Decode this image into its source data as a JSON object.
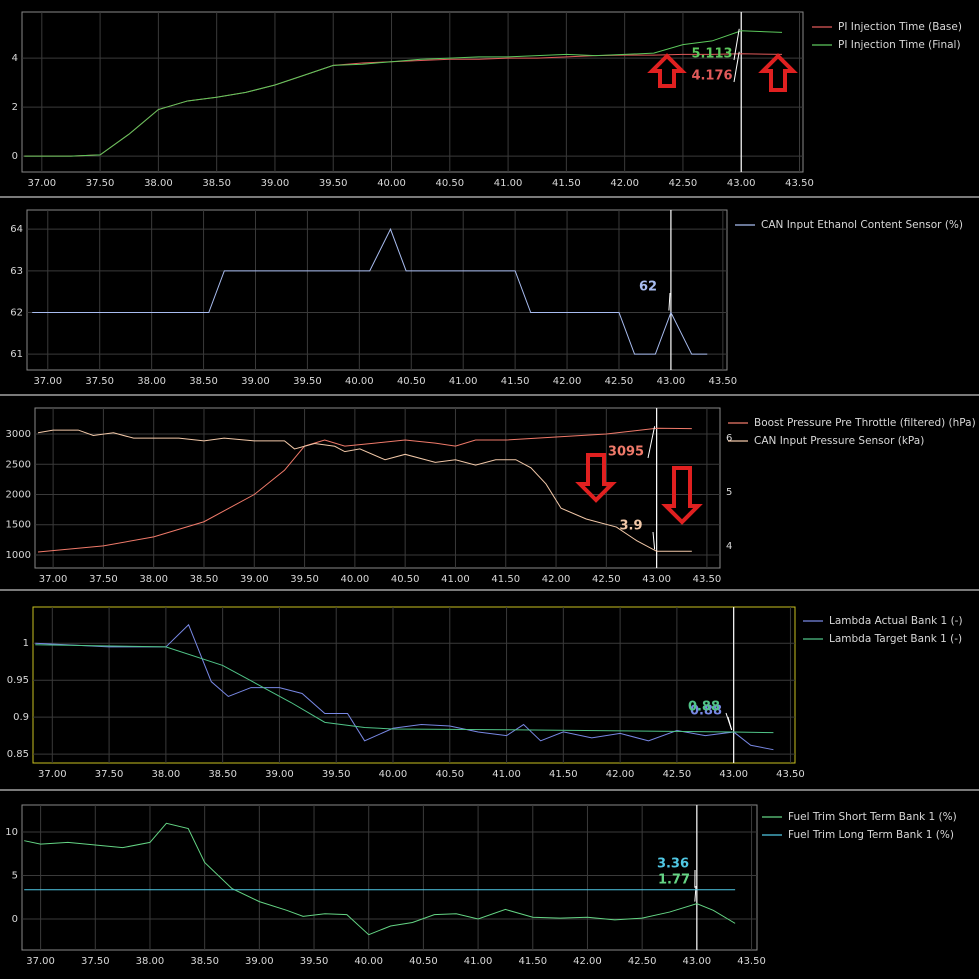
{
  "chart_data": [
    {
      "type": "line",
      "frame_color": "#888888",
      "xlim": [
        36.83,
        43.53
      ],
      "ylim": [
        -0.65,
        5.88
      ],
      "yticks": [
        0,
        2,
        4
      ],
      "grid": true,
      "cursor_x": 43.0,
      "xticks": [
        {
          "value": 37,
          "label": "37.00"
        },
        {
          "value": 37.5,
          "label": "37.50"
        },
        {
          "value": 38,
          "label": "38.00"
        },
        {
          "value": 38.5,
          "label": "38.50"
        },
        {
          "value": 39,
          "label": "39.00"
        },
        {
          "value": 39.5,
          "label": "39.50"
        },
        {
          "value": 40,
          "label": "40.00"
        },
        {
          "value": 40.5,
          "label": "40.50"
        },
        {
          "value": 41,
          "label": "41.00"
        },
        {
          "value": 41.5,
          "label": "41.50"
        },
        {
          "value": 42,
          "label": "42.00"
        },
        {
          "value": 42.5,
          "label": "42.50"
        },
        {
          "value": 43,
          "label": "43.00"
        },
        {
          "value": 43.5,
          "label": "43.50"
        }
      ],
      "series": [
        {
          "name": "PI Injection Time (Base)",
          "color": "#e05a5a",
          "cursor_value": 4.176,
          "x": [
            36.85,
            37.0,
            37.25,
            37.5,
            37.75,
            38.0,
            38.25,
            38.5,
            38.75,
            39.0,
            39.25,
            39.5,
            39.75,
            40.0,
            40.25,
            40.5,
            40.75,
            41.0,
            41.25,
            41.5,
            41.75,
            42.0,
            42.25,
            42.5,
            42.75,
            43.0,
            43.35
          ],
          "values": [
            0,
            0,
            0,
            0.05,
            0.9,
            1.9,
            2.25,
            2.4,
            2.6,
            2.9,
            3.3,
            3.7,
            3.8,
            3.85,
            3.9,
            3.95,
            3.95,
            4.0,
            4.0,
            4.05,
            4.1,
            4.12,
            4.12,
            4.15,
            4.15,
            4.176,
            4.15
          ]
        },
        {
          "name": "PI Injection Time (Final)",
          "color": "#5cc85c",
          "cursor_value": 5.113,
          "x": [
            36.85,
            37.0,
            37.25,
            37.5,
            37.75,
            38.0,
            38.25,
            38.5,
            38.75,
            39.0,
            39.25,
            39.5,
            39.75,
            40.0,
            40.25,
            40.5,
            40.75,
            41.0,
            41.25,
            41.5,
            41.75,
            42.0,
            42.25,
            42.5,
            42.75,
            43.0,
            43.35
          ],
          "values": [
            0,
            0,
            0,
            0.05,
            0.9,
            1.9,
            2.25,
            2.4,
            2.6,
            2.9,
            3.3,
            3.7,
            3.75,
            3.85,
            3.95,
            4.0,
            4.05,
            4.05,
            4.1,
            4.15,
            4.1,
            4.15,
            4.2,
            4.55,
            4.7,
            5.113,
            5.05
          ]
        }
      ]
    },
    {
      "type": "line",
      "frame_color": "#888888",
      "xlim": [
        36.8,
        43.54
      ],
      "ylim": [
        60.62,
        64.46
      ],
      "yticks": [
        61,
        62,
        63,
        64
      ],
      "grid": true,
      "cursor_x": 43.0,
      "xticks": [
        {
          "value": 37,
          "label": "37.00"
        },
        {
          "value": 37.5,
          "label": "37.50"
        },
        {
          "value": 38,
          "label": "38.00"
        },
        {
          "value": 38.5,
          "label": "38.50"
        },
        {
          "value": 39,
          "label": "39.00"
        },
        {
          "value": 39.5,
          "label": "39.50"
        },
        {
          "value": 40,
          "label": "40.00"
        },
        {
          "value": 40.5,
          "label": "40.50"
        },
        {
          "value": 41,
          "label": "41.00"
        },
        {
          "value": 41.5,
          "label": "41.50"
        },
        {
          "value": 42,
          "label": "42.00"
        },
        {
          "value": 42.5,
          "label": "42.50"
        },
        {
          "value": 43,
          "label": "43.00"
        },
        {
          "value": 43.5,
          "label": "43.50"
        }
      ],
      "series": [
        {
          "name": "CAN Input Ethanol Content Sensor (%)",
          "color": "#a8bcf0",
          "cursor_value": 62,
          "x": [
            36.85,
            38.55,
            38.7,
            40.1,
            40.3,
            40.45,
            41.5,
            41.65,
            42.5,
            42.65,
            42.85,
            43.0,
            43.2,
            43.35
          ],
          "values": [
            62,
            62,
            63,
            63,
            64,
            63,
            63,
            62,
            62,
            61,
            61,
            62,
            61,
            61
          ]
        }
      ]
    },
    {
      "type": "line",
      "frame_color": "#888888",
      "xlim": [
        36.82,
        43.63
      ],
      "ylim": [
        785,
        3430
      ],
      "yticks": [
        1000,
        1500,
        2000,
        2500,
        3000
      ],
      "y2lim": [
        3.59,
        6.56
      ],
      "y2ticks": [
        4,
        5,
        6
      ],
      "grid": true,
      "cursor_x": 43.0,
      "xticks": [
        {
          "value": 37,
          "label": "37.00"
        },
        {
          "value": 37.5,
          "label": "37.50"
        },
        {
          "value": 38,
          "label": "38.00"
        },
        {
          "value": 38.5,
          "label": "38.50"
        },
        {
          "value": 39,
          "label": "39.00"
        },
        {
          "value": 39.5,
          "label": "39.50"
        },
        {
          "value": 40,
          "label": "40.00"
        },
        {
          "value": 40.5,
          "label": "40.50"
        },
        {
          "value": 41,
          "label": "41.00"
        },
        {
          "value": 41.5,
          "label": "41.50"
        },
        {
          "value": 42,
          "label": "42.00"
        },
        {
          "value": 42.5,
          "label": "42.50"
        },
        {
          "value": 43,
          "label": "43.00"
        },
        {
          "value": 43.5,
          "label": "43.50"
        }
      ],
      "series": [
        {
          "name": "Boost Pressure Pre Throttle (filtered) (hPa)",
          "color": "#f07a6a",
          "cursor_value": 3095,
          "x": [
            36.85,
            37.5,
            38.0,
            38.5,
            39.0,
            39.3,
            39.5,
            39.7,
            39.9,
            40.2,
            40.5,
            40.8,
            41.0,
            41.2,
            41.5,
            42.0,
            42.5,
            43.0,
            43.35
          ],
          "values": [
            1050,
            1150,
            1300,
            1550,
            2000,
            2400,
            2800,
            2900,
            2800,
            2850,
            2900,
            2850,
            2800,
            2900,
            2900,
            2950,
            3000,
            3095,
            3090
          ]
        },
        {
          "name": "CAN Input Pressure Sensor (kPa)",
          "color": "#f2c8a8",
          "axis": "y2",
          "cursor_value": 3.9,
          "x": [
            36.85,
            37.0,
            37.25,
            37.4,
            37.6,
            37.8,
            38.0,
            38.25,
            38.5,
            38.7,
            39.0,
            39.3,
            39.4,
            39.6,
            39.8,
            39.9,
            40.05,
            40.3,
            40.5,
            40.8,
            41.0,
            41.2,
            41.4,
            41.6,
            41.75,
            41.9,
            42.05,
            42.3,
            42.6,
            42.8,
            43.0,
            43.35
          ],
          "values": [
            6.1,
            6.15,
            6.15,
            6.05,
            6.1,
            6.0,
            6.0,
            6.0,
            5.95,
            6.0,
            5.95,
            5.95,
            5.8,
            5.9,
            5.85,
            5.75,
            5.8,
            5.6,
            5.7,
            5.55,
            5.6,
            5.5,
            5.6,
            5.6,
            5.45,
            5.15,
            4.7,
            4.5,
            4.35,
            4.1,
            3.9,
            3.9
          ]
        }
      ]
    },
    {
      "type": "line",
      "frame_color": "#c8c020",
      "xlim": [
        36.83,
        43.54
      ],
      "ylim": [
        0.838,
        1.049
      ],
      "yticks": [
        0.85,
        0.9,
        0.95,
        1
      ],
      "grid": true,
      "cursor_x": 43.0,
      "xticks": [
        {
          "value": 37,
          "label": "37.00"
        },
        {
          "value": 37.5,
          "label": "37.50"
        },
        {
          "value": 38,
          "label": "38.00"
        },
        {
          "value": 38.5,
          "label": "38.50"
        },
        {
          "value": 39,
          "label": "39.00"
        },
        {
          "value": 39.5,
          "label": "39.50"
        },
        {
          "value": 40,
          "label": "40.00"
        },
        {
          "value": 40.5,
          "label": "40.50"
        },
        {
          "value": 41,
          "label": "41.00"
        },
        {
          "value": 41.5,
          "label": "41.50"
        },
        {
          "value": 42,
          "label": "42.00"
        },
        {
          "value": 42.5,
          "label": "42.50"
        },
        {
          "value": 43,
          "label": "43.00"
        },
        {
          "value": 43.5,
          "label": "43.50"
        }
      ],
      "series": [
        {
          "name": "Lambda Actual Bank 1 (-)",
          "color": "#7888e4",
          "cursor_value": 0.88,
          "x": [
            36.85,
            37.5,
            38.0,
            38.2,
            38.4,
            38.55,
            38.75,
            39.0,
            39.2,
            39.4,
            39.6,
            39.75,
            40.0,
            40.25,
            40.5,
            40.75,
            41.0,
            41.15,
            41.3,
            41.5,
            41.75,
            42.0,
            42.25,
            42.5,
            42.75,
            43.0,
            43.15,
            43.35
          ],
          "values": [
            1.0,
            0.995,
            0.995,
            1.025,
            0.948,
            0.928,
            0.94,
            0.94,
            0.932,
            0.905,
            0.905,
            0.868,
            0.885,
            0.89,
            0.888,
            0.88,
            0.875,
            0.89,
            0.868,
            0.88,
            0.872,
            0.878,
            0.868,
            0.882,
            0.875,
            0.88,
            0.862,
            0.856
          ]
        },
        {
          "name": "Lambda Target Bank 1 (-)",
          "color": "#50c488",
          "cursor_value": 0.88,
          "x": [
            36.85,
            38.0,
            38.5,
            38.8,
            39.1,
            39.4,
            39.75,
            40.0,
            41.0,
            43.0,
            43.35
          ],
          "values": [
            0.998,
            0.995,
            0.97,
            0.945,
            0.92,
            0.893,
            0.886,
            0.884,
            0.883,
            0.88,
            0.879
          ]
        }
      ]
    },
    {
      "type": "line",
      "frame_color": "#888888",
      "xlim": [
        36.83,
        43.55
      ],
      "ylim": [
        -3.56,
        13.1
      ],
      "yticks": [
        0,
        5,
        10
      ],
      "grid": true,
      "cursor_x": 43.0,
      "xticks": [
        {
          "value": 37,
          "label": "37.00"
        },
        {
          "value": 37.5,
          "label": "37.50"
        },
        {
          "value": 38,
          "label": "38.00"
        },
        {
          "value": 38.5,
          "label": "38.50"
        },
        {
          "value": 39,
          "label": "39.00"
        },
        {
          "value": 39.5,
          "label": "39.50"
        },
        {
          "value": 40,
          "label": "40.00"
        },
        {
          "value": 40.5,
          "label": "40.50"
        },
        {
          "value": 41,
          "label": "41.00"
        },
        {
          "value": 41.5,
          "label": "41.50"
        },
        {
          "value": 42,
          "label": "42.00"
        },
        {
          "value": 42.5,
          "label": "42.50"
        },
        {
          "value": 43,
          "label": "43.00"
        },
        {
          "value": 43.5,
          "label": "43.50"
        }
      ],
      "series": [
        {
          "name": "Fuel Trim Short Term Bank 1 (%)",
          "color": "#64d484",
          "cursor_value": 1.77,
          "x": [
            36.85,
            37.0,
            37.25,
            37.5,
            37.75,
            38.0,
            38.15,
            38.35,
            38.5,
            38.75,
            39.0,
            39.25,
            39.4,
            39.6,
            39.8,
            40.0,
            40.2,
            40.4,
            40.6,
            40.8,
            41.0,
            41.25,
            41.5,
            41.75,
            42.0,
            42.25,
            42.5,
            42.75,
            43.0,
            43.15,
            43.35
          ],
          "values": [
            9,
            8.6,
            8.8,
            8.5,
            8.2,
            8.8,
            11,
            10.4,
            6.5,
            3.5,
            2,
            1,
            0.3,
            0.6,
            0.5,
            -1.8,
            -0.8,
            -0.4,
            0.5,
            0.6,
            0,
            1.1,
            0.2,
            0.1,
            0.2,
            -0.1,
            0.1,
            0.8,
            1.77,
            1.0,
            -0.5
          ]
        },
        {
          "name": "Fuel Trim Long Term Bank 1 (%)",
          "color": "#50c8e4",
          "cursor_value": 3.36,
          "x": [
            36.85,
            43.35
          ],
          "values": [
            3.36,
            3.36
          ]
        }
      ]
    }
  ]
}
